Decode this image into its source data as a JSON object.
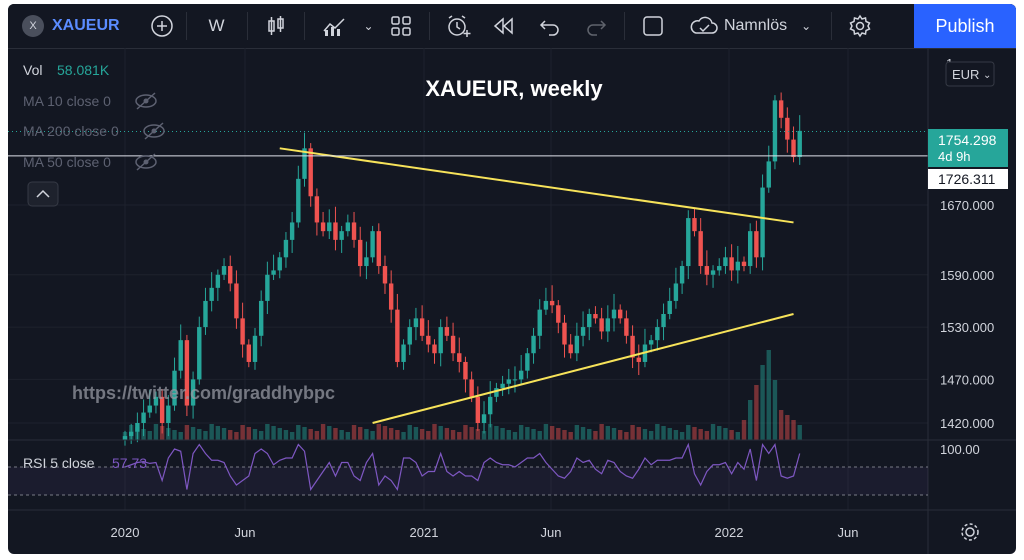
{
  "toolbar": {
    "symbol_badge": "X",
    "symbol": "XAUEUR",
    "interval": "W",
    "layout_name": "Namnlös",
    "publish_label": "Publish"
  },
  "legend": {
    "vol_label": "Vol",
    "vol_value": "58.081K",
    "ma10": "MA 10 close 0",
    "ma200": "MA 200 close 0",
    "ma50": "MA 50 close 0"
  },
  "title": "XAUEUR, weekly",
  "watermark": "https://twitter.com/graddhybpc",
  "currency": "EUR",
  "rsi": {
    "label": "RSI 5 close",
    "value": "57.73",
    "axis_label": "100.00"
  },
  "price_badges": {
    "last": "1754.298",
    "countdown": "4d 9h",
    "line": "1726.311",
    "top_tick": "1"
  },
  "colors": {
    "up": "#26a69a",
    "down": "#ef5350",
    "trend": "#f7e35a",
    "rsi": "#7e57c2",
    "accent": "#2962ff"
  },
  "chart_data": {
    "type": "candlestick",
    "title": "XAUEUR, weekly",
    "y_ticks": [
      1420,
      1470,
      1530,
      1590,
      1670
    ],
    "y_tick_labels": [
      "1420.000",
      "1470.000",
      "1530.000",
      "1590.000",
      "1670.000"
    ],
    "x_ticks": [
      "2020",
      "Jun",
      "2021",
      "Jun",
      "2022",
      "Jun"
    ],
    "ylim": [
      1410,
      1800
    ],
    "horizontal_line": 1726.311,
    "last_price": 1754.298,
    "closes": [
      1405,
      1410,
      1420,
      1432,
      1440,
      1450,
      1420,
      1440,
      1480,
      1515,
      1440,
      1470,
      1530,
      1560,
      1575,
      1590,
      1600,
      1580,
      1540,
      1510,
      1490,
      1520,
      1560,
      1590,
      1595,
      1610,
      1630,
      1650,
      1700,
      1735,
      1680,
      1650,
      1640,
      1650,
      1630,
      1640,
      1650,
      1630,
      1600,
      1610,
      1640,
      1600,
      1580,
      1550,
      1490,
      1510,
      1530,
      1540,
      1520,
      1510,
      1500,
      1530,
      1520,
      1500,
      1490,
      1470,
      1450,
      1420,
      1430,
      1450,
      1460,
      1465,
      1470,
      1470,
      1480,
      1500,
      1520,
      1550,
      1560,
      1555,
      1535,
      1510,
      1500,
      1520,
      1530,
      1545,
      1540,
      1525,
      1540,
      1550,
      1540,
      1520,
      1495,
      1490,
      1510,
      1515,
      1530,
      1545,
      1560,
      1580,
      1600,
      1655,
      1640,
      1600,
      1590,
      1595,
      1600,
      1610,
      1595,
      1605,
      1600,
      1640,
      1610,
      1690,
      1720,
      1790,
      1770,
      1745,
      1725,
      1755
    ],
    "volume_spikes": [
      {
        "week": 103,
        "volume": "58.081K"
      }
    ],
    "rsi_period": 5,
    "rsi_last": 57.73,
    "trendlines": [
      {
        "from_week": 25,
        "from_price": 1735,
        "to_week": 108,
        "to_price": 1650
      },
      {
        "from_week": 40,
        "from_price": 1420,
        "to_week": 108,
        "to_price": 1545
      }
    ]
  }
}
